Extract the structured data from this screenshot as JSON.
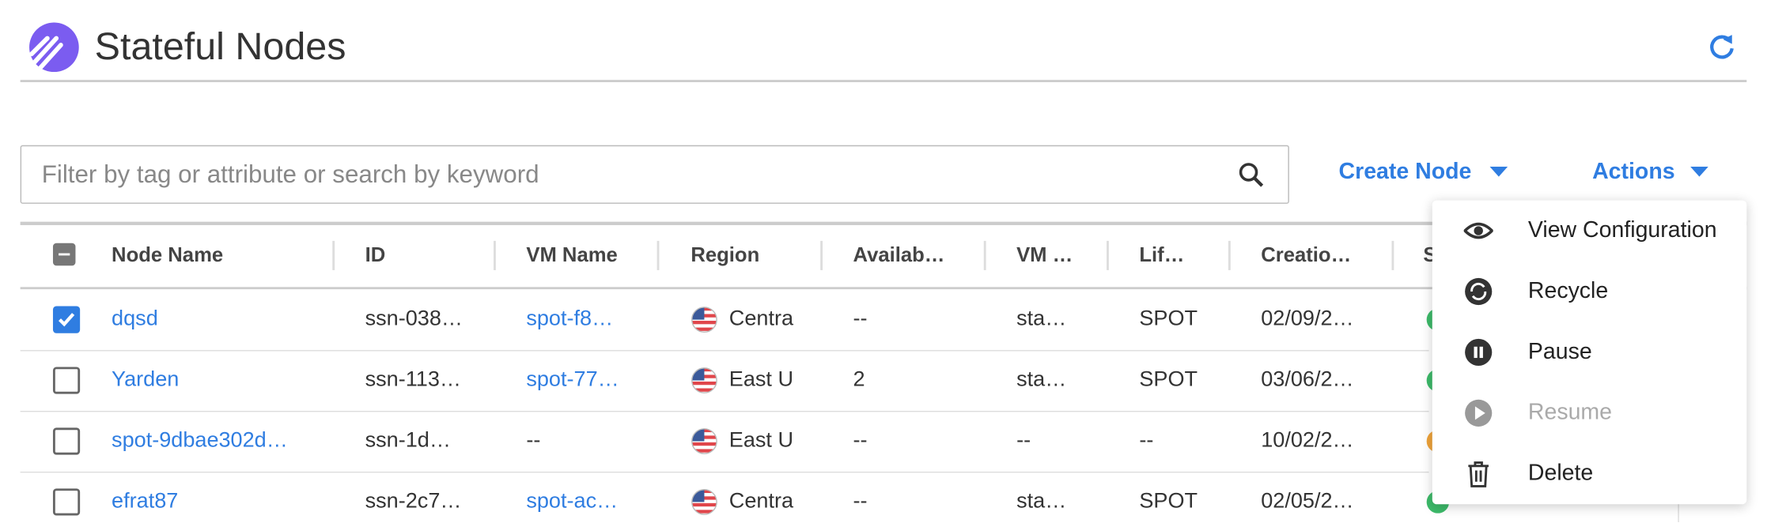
{
  "header": {
    "title": "Stateful Nodes"
  },
  "toolbar": {
    "search_placeholder": "Filter by tag or attribute or search by keyword",
    "create_button": "Create Node",
    "actions_button": "Actions"
  },
  "table": {
    "columns": [
      "Node Name",
      "ID",
      "VM Name",
      "Region",
      "Availab…",
      "VM …",
      "Lif…",
      "Creatio…",
      "S"
    ],
    "rows": [
      [
        "dqsd",
        "ssn-038…",
        "spot-f8…",
        "Centra",
        "--",
        "sta…",
        "SPOT",
        "02/09/2…"
      ],
      [
        "Yarden",
        "ssn-113…",
        "spot-77…",
        "East U",
        "2",
        "sta…",
        "SPOT",
        "03/06/2…"
      ],
      [
        "spot-9dbae302d…",
        "ssn-1d…",
        "--",
        "East U",
        "--",
        "--",
        "--",
        "10/02/2…"
      ],
      [
        "efrat87",
        "ssn-2c7…",
        "spot-ac…",
        "Centra",
        "--",
        "sta…",
        "SPOT",
        "02/05/2…"
      ]
    ],
    "selected": [
      true,
      false,
      false,
      false
    ],
    "status_colors": [
      "#3dbb6a",
      "#3dbb6a",
      "#f0a43a",
      "#3dbb6a"
    ]
  },
  "menu": {
    "items": [
      "View Configuration",
      "Recycle",
      "Pause",
      "Resume",
      "Delete"
    ],
    "disabled": [
      false,
      false,
      false,
      true,
      false
    ]
  }
}
